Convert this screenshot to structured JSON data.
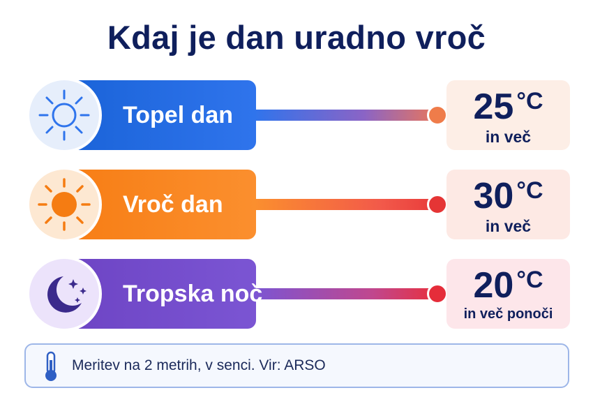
{
  "title": "Kdaj je dan uradno vroč",
  "rows": [
    {
      "label": "Topel dan",
      "icon": "sun-outline-icon",
      "value": "25",
      "unit": "°C",
      "note": "in več",
      "colors": {
        "bar": "#2f74ec",
        "icon_bg": "#e6eefb",
        "icon": "#2f74ec"
      }
    },
    {
      "label": "Vroč dan",
      "icon": "sun-filled-icon",
      "value": "30",
      "unit": "°C",
      "note": "in več",
      "colors": {
        "bar": "#fb8f2e",
        "icon_bg": "#fde8d2",
        "icon": "#f57c12"
      }
    },
    {
      "label": "Tropska noč",
      "icon": "moon-stars-icon",
      "value": "20",
      "unit": "°C",
      "note": "in več ponoči",
      "colors": {
        "bar": "#7b55d3",
        "icon_bg": "#ece3fb",
        "icon": "#3b2a8c"
      }
    }
  ],
  "footer": {
    "icon": "thermometer-icon",
    "text": "Meritev na 2 metrih, v senci. Vir: ARSO"
  }
}
